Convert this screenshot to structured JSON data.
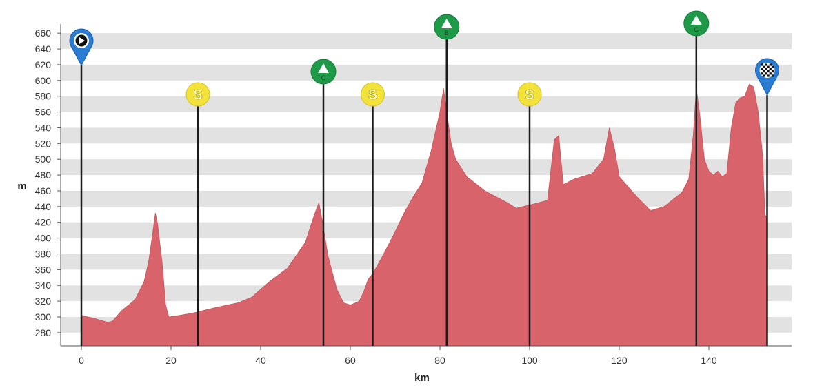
{
  "chart_data": {
    "type": "area",
    "title": "",
    "xlabel": "km",
    "ylabel": "m",
    "xlim": [
      0,
      157
    ],
    "ylim": [
      260,
      670
    ],
    "x_ticks": [
      "0",
      "20",
      "40",
      "60",
      "80",
      "100",
      "120",
      "140"
    ],
    "y_ticks": [
      "280",
      "300",
      "320",
      "340",
      "360",
      "380",
      "400",
      "420",
      "440",
      "460",
      "480",
      "500",
      "520",
      "540",
      "560",
      "580",
      "600",
      "620",
      "640",
      "660"
    ],
    "grid": "horizontal bands",
    "fill_color": "#d9636b",
    "band_color": "#e2e2e2",
    "series": [
      {
        "x": [
          0,
          3,
          6,
          7,
          9,
          12,
          14,
          15,
          16,
          16.5,
          17,
          18,
          18.8,
          19.5,
          22,
          25,
          30,
          35,
          38,
          42,
          46,
          50,
          52,
          53,
          53.8,
          55,
          57,
          58.5,
          60,
          62,
          63,
          64,
          65,
          67,
          70,
          72,
          74,
          76,
          78,
          80,
          80.8,
          81.5,
          82.5,
          83.5,
          86,
          90,
          95,
          97,
          100,
          104,
          105.5,
          106.5,
          107.5,
          110,
          114,
          116.5,
          117.8,
          119,
          120,
          124,
          127,
          130,
          134,
          135.5,
          136.5,
          137.2,
          138,
          139,
          140,
          141,
          142,
          143,
          144,
          145,
          146,
          147,
          148,
          149,
          150,
          151,
          152,
          152.5,
          153
        ],
        "y": [
          302,
          298,
          293,
          295,
          308,
          322,
          345,
          370,
          410,
          432,
          418,
          370,
          315,
          300,
          302,
          305,
          312,
          318,
          325,
          345,
          362,
          395,
          430,
          445,
          420,
          378,
          335,
          318,
          315,
          320,
          332,
          348,
          355,
          375,
          408,
          432,
          452,
          470,
          510,
          560,
          590,
          560,
          520,
          500,
          478,
          460,
          445,
          438,
          442,
          448,
          525,
          530,
          468,
          475,
          482,
          500,
          540,
          512,
          478,
          452,
          435,
          440,
          458,
          475,
          530,
          590,
          555,
          500,
          485,
          480,
          485,
          478,
          482,
          540,
          572,
          578,
          580,
          595,
          592,
          560,
          505,
          430,
          425
        ]
      }
    ],
    "start_marker": {
      "km": 0,
      "icon": "start-flag-icon",
      "color": "#2b7cd3"
    },
    "finish_marker": {
      "km": 153,
      "icon": "checkered-flag-icon",
      "color": "#2b7cd3"
    },
    "sprints": [
      {
        "km": 26,
        "label": "S",
        "color": "#f2e23a"
      },
      {
        "km": 65,
        "label": "S",
        "color": "#f2e23a"
      },
      {
        "km": 100,
        "label": "S",
        "color": "#f2e23a"
      }
    ],
    "climbs": [
      {
        "km": 54,
        "category": "C",
        "color": "#1f9a48"
      },
      {
        "km": 81.5,
        "category": "B",
        "color": "#1f9a48"
      },
      {
        "km": 137.2,
        "category": "C",
        "color": "#1f9a48"
      }
    ]
  }
}
